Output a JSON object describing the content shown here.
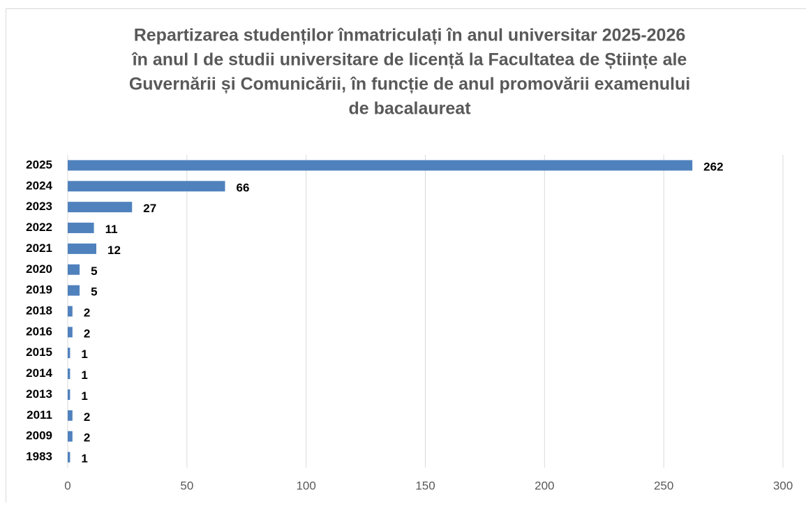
{
  "chart_data": {
    "type": "bar",
    "orientation": "horizontal",
    "title": [
      "Repartizarea studenților înmatriculați în anul universitar 2025-2026",
      "în anul I de studii universitare de licență la Facultatea de Științe ale",
      "Guvernării și Comunicării, în funcție de anul promovării examenului",
      "de bacalaureat"
    ],
    "categories": [
      "2025",
      "2024",
      "2023",
      "2022",
      "2021",
      "2020",
      "2019",
      "2018",
      "2016",
      "2015",
      "2014",
      "2013",
      "2011",
      "2009",
      "1983"
    ],
    "values": [
      262,
      66,
      27,
      11,
      12,
      5,
      5,
      2,
      2,
      1,
      1,
      1,
      2,
      2,
      1
    ],
    "color": "#4f81bd",
    "xlim": [
      0,
      300
    ],
    "xticks": [
      0,
      50,
      100,
      150,
      200,
      250,
      300
    ],
    "grid": true
  }
}
